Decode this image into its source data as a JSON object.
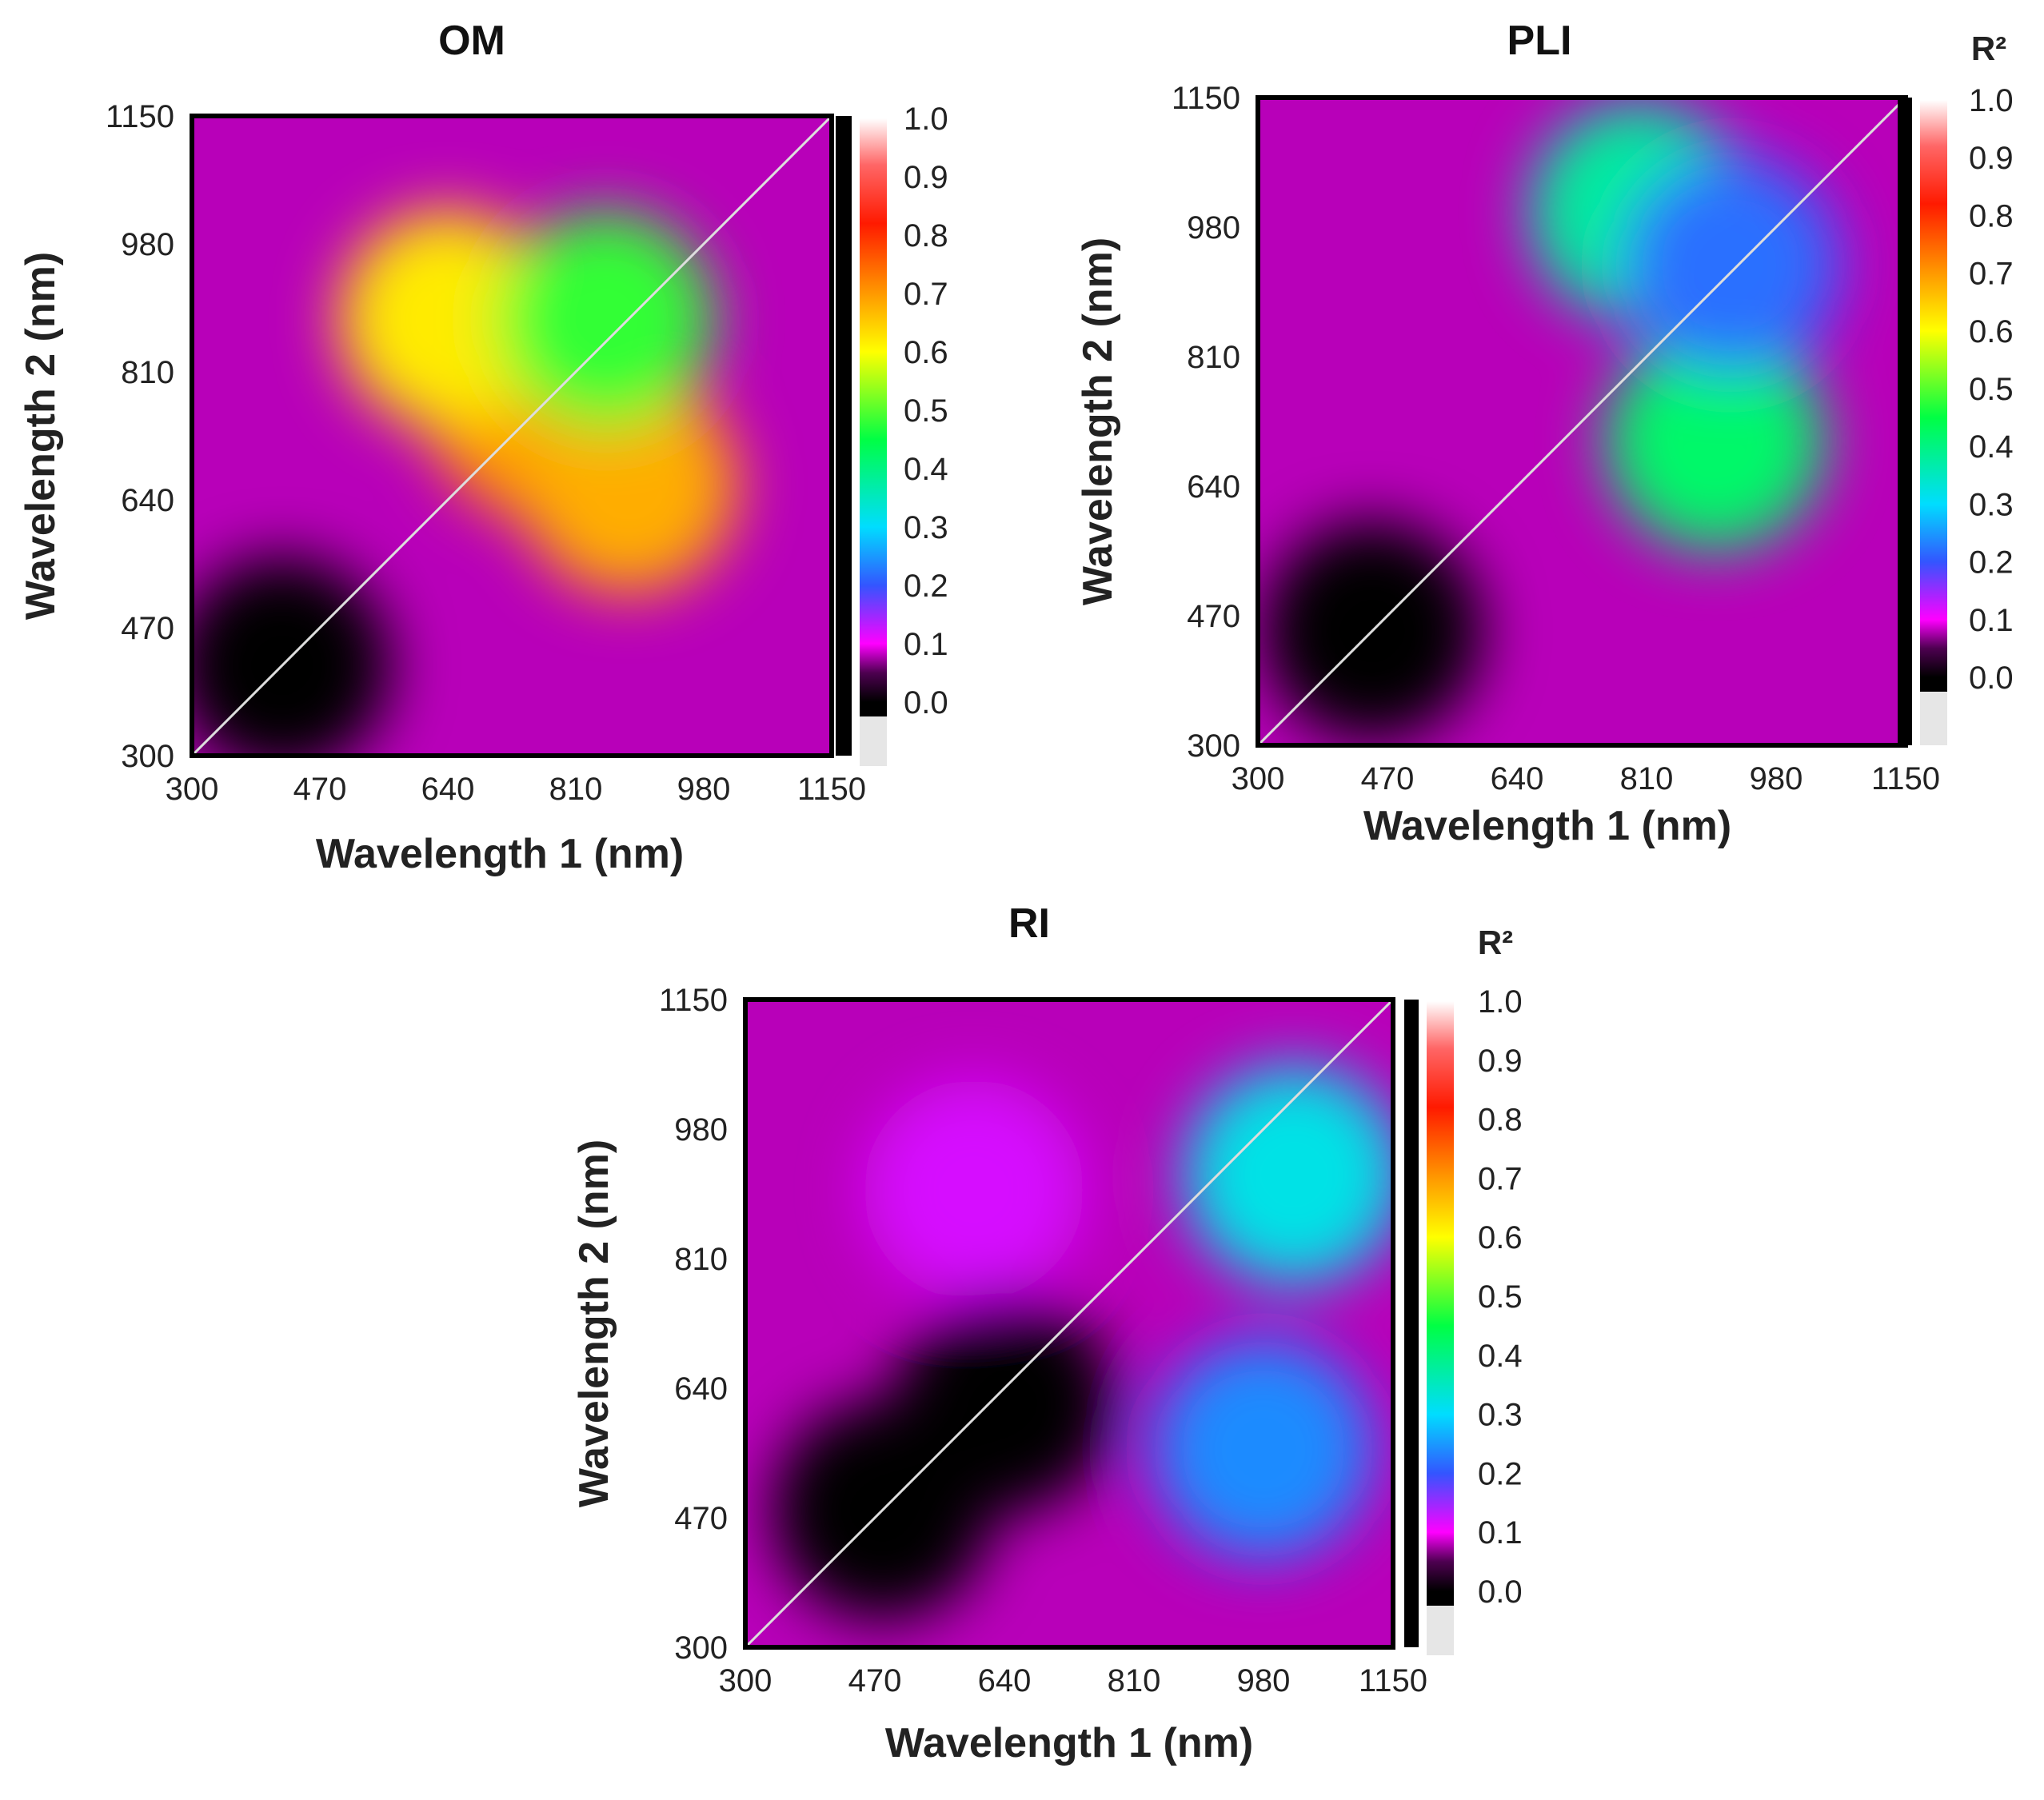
{
  "chart_data": [
    {
      "type": "heatmap",
      "title": "OM",
      "xlabel": "Wavelength 1 (nm)",
      "ylabel": "Wavelength 2 (nm)",
      "xticks": [
        "300",
        "470",
        "640",
        "810",
        "980",
        "1150"
      ],
      "yticks": [
        "300",
        "470",
        "640",
        "810",
        "980",
        "1150"
      ],
      "xlim": [
        300,
        1150
      ],
      "ylim": [
        300,
        1150
      ],
      "colorbar": {
        "label": "",
        "min": 0.0,
        "max": 1.0,
        "ticks": [
          "1.0",
          "0.9",
          "0.8",
          "0.7",
          "0.6",
          "0.5",
          "0.4",
          "0.3",
          "0.2",
          "0.1",
          "0.0"
        ]
      },
      "hotspots": [
        {
          "wavelength_1": 760,
          "wavelength_2": 760,
          "r2": 0.7
        },
        {
          "wavelength_1": 880,
          "wavelength_2": 660,
          "r2": 0.68
        },
        {
          "wavelength_1": 640,
          "wavelength_2": 880,
          "r2": 0.62
        },
        {
          "wavelength_1": 850,
          "wavelength_2": 880,
          "r2": 0.48
        },
        {
          "wavelength_1": 420,
          "wavelength_2": 420,
          "r2": 0.0
        }
      ]
    },
    {
      "type": "heatmap",
      "title": "PLI",
      "xlabel": "Wavelength 1 (nm)",
      "ylabel": "Wavelength 2 (nm)",
      "xticks": [
        "300",
        "470",
        "640",
        "810",
        "980",
        "1150"
      ],
      "yticks": [
        "300",
        "470",
        "640",
        "810",
        "980",
        "1150"
      ],
      "xlim": [
        300,
        1150
      ],
      "ylim": [
        300,
        1150
      ],
      "colorbar": {
        "label": "R²",
        "min": 0.0,
        "max": 1.0,
        "ticks": [
          "1.0",
          "0.9",
          "0.8",
          "0.7",
          "0.6",
          "0.5",
          "0.4",
          "0.3",
          "0.2",
          "0.1",
          "0.0"
        ]
      },
      "hotspots": [
        {
          "wavelength_1": 900,
          "wavelength_2": 700,
          "r2": 0.42
        },
        {
          "wavelength_1": 800,
          "wavelength_2": 1000,
          "r2": 0.38
        },
        {
          "wavelength_1": 920,
          "wavelength_2": 930,
          "r2": 0.22
        },
        {
          "wavelength_1": 450,
          "wavelength_2": 450,
          "r2": 0.0
        }
      ]
    },
    {
      "type": "heatmap",
      "title": "RI",
      "xlabel": "Wavelength 1 (nm)",
      "ylabel": "Wavelength 2 (nm)",
      "xticks": [
        "300",
        "470",
        "640",
        "810",
        "980",
        "1150"
      ],
      "yticks": [
        "300",
        "470",
        "640",
        "810",
        "980",
        "1150"
      ],
      "xlim": [
        300,
        1150
      ],
      "ylim": [
        300,
        1150
      ],
      "colorbar": {
        "label": "R²",
        "min": 0.0,
        "max": 1.0,
        "ticks": [
          "1.0",
          "0.9",
          "0.8",
          "0.7",
          "0.6",
          "0.5",
          "0.4",
          "0.3",
          "0.2",
          "0.1",
          "0.0"
        ]
      },
      "hotspots": [
        {
          "wavelength_1": 1020,
          "wavelength_2": 920,
          "r2": 0.32
        },
        {
          "wavelength_1": 980,
          "wavelength_2": 560,
          "r2": 0.24
        },
        {
          "wavelength_1": 600,
          "wavelength_2": 900,
          "r2": 0.12
        },
        {
          "wavelength_1": 640,
          "wavelength_2": 620,
          "r2": 0.0
        },
        {
          "wavelength_1": 480,
          "wavelength_2": 480,
          "r2": 0.0
        }
      ]
    }
  ]
}
